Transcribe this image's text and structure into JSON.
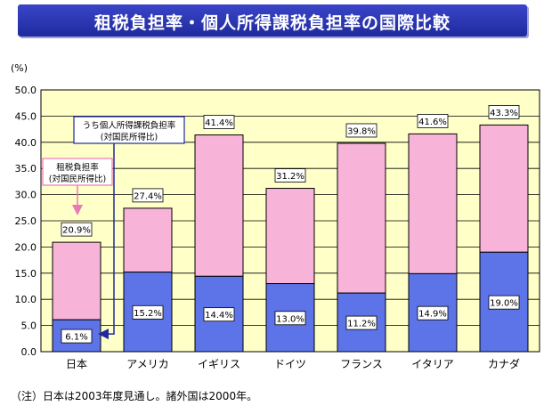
{
  "title": "租税負担率・個人所得課税負担率の国際比較",
  "footnote": "（注）日本は2003年度見通し。諸外国は2000年。",
  "colors": {
    "total": "#f8b4d8",
    "income": "#5d73e8",
    "plot_bg": "#ffffc8",
    "title_bg": "#2a33b0"
  },
  "chart_data": {
    "type": "bar",
    "stacked": true,
    "y_unit_label": "(%)",
    "ylim": [
      0,
      50
    ],
    "yticks": [
      "0.0",
      "5.0",
      "10.0",
      "15.0",
      "20.0",
      "25.0",
      "30.0",
      "35.0",
      "40.0",
      "45.0",
      "50.0"
    ],
    "categories": [
      "日本",
      "アメリカ",
      "イギリス",
      "ドイツ",
      "フランス",
      "イタリア",
      "カナダ"
    ],
    "total_values": [
      20.9,
      27.4,
      41.4,
      31.2,
      39.8,
      41.6,
      43.3
    ],
    "income_values": [
      6.1,
      15.2,
      14.4,
      13.0,
      11.2,
      14.9,
      19.0
    ],
    "total_labels": [
      "20.9%",
      "27.4%",
      "41.4%",
      "31.2%",
      "39.8%",
      "41.6%",
      "43.3%"
    ],
    "income_labels": [
      "6.1%",
      "15.2%",
      "14.4%",
      "13.0%",
      "11.2%",
      "14.9%",
      "19.0%"
    ],
    "annotations": [
      {
        "target": "total",
        "line1": "租税負担率",
        "line2": "(対国民所得比)"
      },
      {
        "target": "income",
        "line1": "うち個人所得課税負担率",
        "line2": "(対国民所得比)"
      }
    ]
  }
}
